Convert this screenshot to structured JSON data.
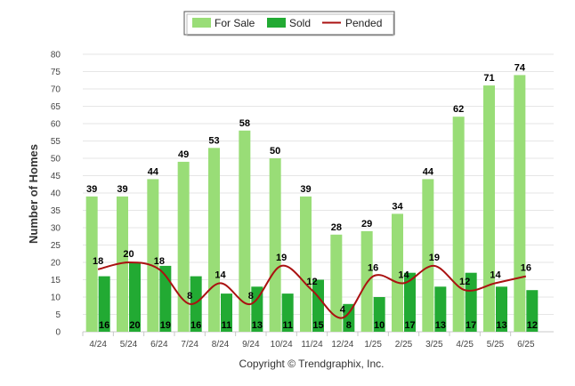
{
  "chart_data": {
    "type": "bar",
    "categories": [
      "4/24",
      "5/24",
      "6/24",
      "7/24",
      "8/24",
      "9/24",
      "10/24",
      "11/24",
      "12/24",
      "1/25",
      "2/25",
      "3/25",
      "4/25",
      "5/25",
      "6/25"
    ],
    "series": [
      {
        "name": "For Sale",
        "type": "bar",
        "color": "#99dd77",
        "values": [
          39,
          39,
          44,
          49,
          53,
          58,
          50,
          39,
          28,
          29,
          34,
          44,
          62,
          71,
          74
        ]
      },
      {
        "name": "Sold",
        "type": "bar",
        "color": "#22aa33",
        "values": [
          16,
          20,
          19,
          16,
          11,
          13,
          11,
          15,
          8,
          10,
          17,
          13,
          17,
          13,
          12
        ]
      },
      {
        "name": "Pended",
        "type": "line",
        "color": "#aa1111",
        "values": [
          18,
          20,
          18,
          8,
          14,
          8,
          19,
          12,
          4,
          16,
          14,
          19,
          12,
          14,
          16
        ]
      }
    ],
    "ylabel": "Number of Homes",
    "xlabel": "",
    "ylim": [
      0,
      80
    ],
    "ytick_step": 5,
    "grid": true,
    "legend_position": "top-center",
    "credit": "Copyright © Trendgraphix, Inc."
  }
}
